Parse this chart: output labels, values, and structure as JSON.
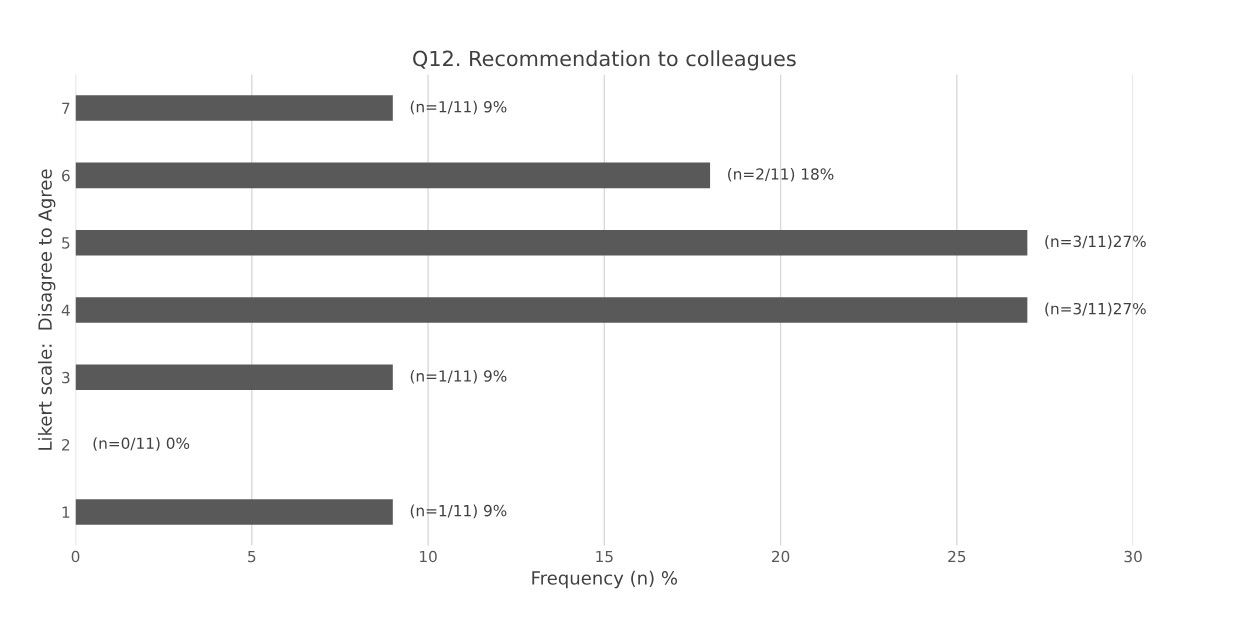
{
  "chart_data": {
    "type": "bar",
    "orientation": "horizontal",
    "title": "Q12. Recommendation to colleagues",
    "xlabel": "Frequency (n) %",
    "ylabel": "Likert scale:  Disagree to Agree",
    "categories": [
      "7",
      "6",
      "5",
      "4",
      "3",
      "2",
      "1"
    ],
    "values": [
      9,
      18,
      27,
      27,
      9,
      0,
      9
    ],
    "value_labels": [
      "(n=1/11) 9%",
      "(n=2/11) 18%",
      "(n=3/11)27%",
      "(n=3/11)27%",
      "(n=1/11) 9%",
      "(n=0/11) 0%",
      "(n=1/11) 9%"
    ],
    "color": "#595959",
    "xlim": [
      0,
      30
    ],
    "xticks": [
      0,
      5,
      10,
      15,
      20,
      25,
      30
    ],
    "grid": "x"
  }
}
